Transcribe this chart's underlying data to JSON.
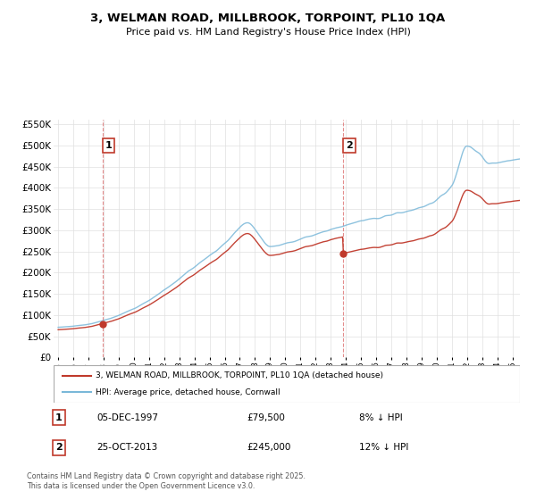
{
  "title": "3, WELMAN ROAD, MILLBROOK, TORPOINT, PL10 1QA",
  "subtitle": "Price paid vs. HM Land Registry's House Price Index (HPI)",
  "legend_line1": "3, WELMAN ROAD, MILLBROOK, TORPOINT, PL10 1QA (detached house)",
  "legend_line2": "HPI: Average price, detached house, Cornwall",
  "footer": "Contains HM Land Registry data © Crown copyright and database right 2025.\nThis data is licensed under the Open Government Licence v3.0.",
  "transaction1_label": "1",
  "transaction1_date": "05-DEC-1997",
  "transaction1_price": "£79,500",
  "transaction1_hpi": "8% ↓ HPI",
  "transaction2_label": "2",
  "transaction2_date": "25-OCT-2013",
  "transaction2_price": "£245,000",
  "transaction2_hpi": "12% ↓ HPI",
  "hpi_color": "#7ab8d9",
  "price_color": "#c0392b",
  "dashed_color": "#e08080",
  "marker1_x": 1997.92,
  "marker2_x": 2013.83,
  "marker1_y": 79500,
  "marker2_y": 245000,
  "ylim": [
    0,
    560000
  ],
  "xlim_start": 1994.7,
  "xlim_end": 2025.5,
  "background_color": "#ffffff",
  "grid_color": "#e0e0e0"
}
